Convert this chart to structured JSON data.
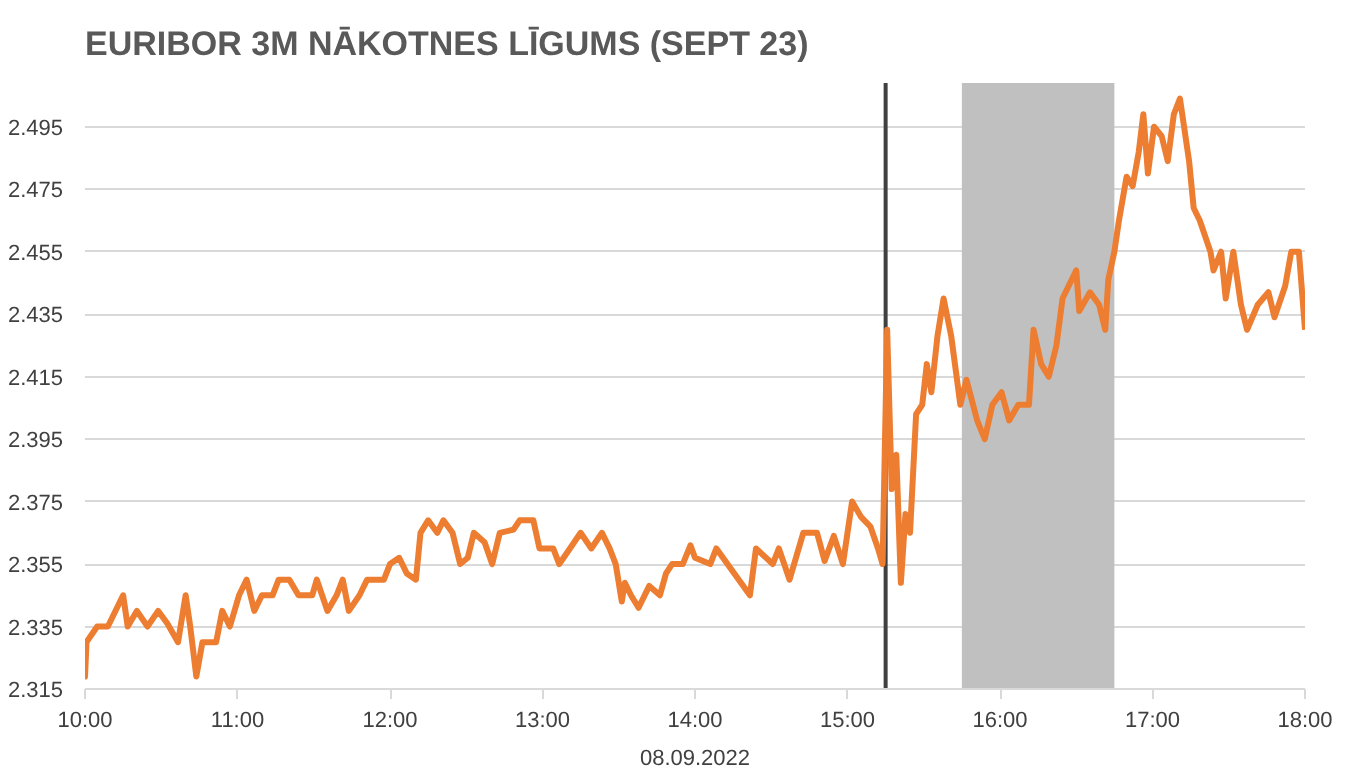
{
  "chart_data": {
    "type": "line",
    "title": "EURIBOR 3M NĀKOTNES LĪGUMS (SEPT 23)",
    "xlabel": "08.09.2022",
    "x": [
      10.0,
      10.0,
      10.01,
      10.08,
      10.15,
      10.21,
      10.25,
      10.28,
      10.34,
      10.41,
      10.48,
      10.54,
      10.61,
      10.66,
      10.69,
      10.73,
      10.77,
      10.86,
      10.9,
      10.95,
      11.01,
      11.06,
      11.11,
      11.16,
      11.23,
      11.27,
      11.34,
      11.4,
      11.49,
      11.52,
      11.59,
      11.65,
      11.69,
      11.73,
      11.8,
      11.85,
      11.96,
      12.0,
      12.06,
      12.11,
      12.17,
      12.2,
      12.25,
      12.31,
      12.35,
      12.41,
      12.46,
      12.51,
      12.55,
      12.62,
      12.67,
      12.72,
      12.81,
      12.85,
      12.94,
      12.98,
      13.07,
      13.11,
      13.18,
      13.25,
      13.32,
      13.39,
      13.44,
      13.48,
      13.52,
      13.54,
      13.58,
      13.63,
      13.7,
      13.77,
      13.81,
      13.85,
      13.92,
      13.97,
      14.0,
      14.1,
      14.14,
      14.36,
      14.4,
      14.51,
      14.55,
      14.62,
      14.71,
      14.8,
      14.85,
      14.91,
      14.97,
      15.03,
      15.09,
      15.15,
      15.2,
      15.23,
      15.26,
      15.29,
      15.32,
      15.35,
      15.38,
      15.41,
      15.45,
      15.49,
      15.52,
      15.55,
      15.59,
      15.63,
      15.68,
      15.74,
      15.78,
      15.85,
      15.9,
      15.95,
      16.01,
      16.06,
      16.12,
      16.19,
      16.22,
      16.27,
      16.32,
      16.37,
      16.41,
      16.5,
      16.52,
      16.59,
      16.65,
      16.69,
      16.71,
      16.75,
      16.78,
      16.83,
      16.87,
      16.91,
      16.94,
      16.97,
      17.01,
      17.06,
      17.1,
      17.14,
      17.18,
      17.24,
      17.27,
      17.31,
      17.38,
      17.4,
      17.45,
      17.48,
      17.53,
      17.58,
      17.62,
      17.69,
      17.76,
      17.8,
      17.87,
      17.91,
      17.96,
      18.0
    ],
    "series": [
      {
        "color": "#ed7d31",
        "values": [
          2.323,
          2.319,
          2.33,
          2.335,
          2.335,
          2.341,
          2.345,
          2.335,
          2.34,
          2.335,
          2.34,
          2.336,
          2.33,
          2.345,
          2.335,
          2.319,
          2.33,
          2.33,
          2.34,
          2.335,
          2.345,
          2.35,
          2.34,
          2.345,
          2.345,
          2.35,
          2.35,
          2.345,
          2.345,
          2.35,
          2.34,
          2.345,
          2.35,
          2.34,
          2.345,
          2.35,
          2.35,
          2.355,
          2.357,
          2.352,
          2.35,
          2.365,
          2.369,
          2.365,
          2.369,
          2.365,
          2.355,
          2.357,
          2.365,
          2.362,
          2.355,
          2.365,
          2.366,
          2.369,
          2.369,
          2.36,
          2.36,
          2.355,
          2.36,
          2.365,
          2.36,
          2.365,
          2.36,
          2.355,
          2.343,
          2.349,
          2.345,
          2.341,
          2.348,
          2.345,
          2.352,
          2.355,
          2.355,
          2.361,
          2.357,
          2.355,
          2.36,
          2.345,
          2.36,
          2.355,
          2.36,
          2.35,
          2.365,
          2.365,
          2.356,
          2.364,
          2.355,
          2.375,
          2.37,
          2.367,
          2.36,
          2.355,
          2.43,
          2.379,
          2.39,
          2.349,
          2.371,
          2.365,
          2.403,
          2.406,
          2.419,
          2.41,
          2.428,
          2.44,
          2.428,
          2.406,
          2.414,
          2.401,
          2.395,
          2.406,
          2.41,
          2.401,
          2.406,
          2.406,
          2.43,
          2.419,
          2.415,
          2.425,
          2.44,
          2.449,
          2.436,
          2.442,
          2.438,
          2.43,
          2.446,
          2.455,
          2.465,
          2.479,
          2.476,
          2.487,
          2.499,
          2.48,
          2.495,
          2.492,
          2.484,
          2.499,
          2.504,
          2.484,
          2.469,
          2.465,
          2.455,
          2.449,
          2.455,
          2.44,
          2.455,
          2.438,
          2.43,
          2.438,
          2.442,
          2.434,
          2.444,
          2.455,
          2.455,
          2.43
        ]
      }
    ],
    "xlim": [
      10,
      18
    ],
    "xticks": [
      {
        "value": 10,
        "label": "10:00"
      },
      {
        "value": 11,
        "label": "11:00"
      },
      {
        "value": 12,
        "label": "12:00"
      },
      {
        "value": 13,
        "label": "13:00"
      },
      {
        "value": 14,
        "label": "14:00"
      },
      {
        "value": 15,
        "label": "15:00"
      },
      {
        "value": 16,
        "label": "16:00"
      },
      {
        "value": 17,
        "label": "17:00"
      },
      {
        "value": 18,
        "label": "18:00"
      }
    ],
    "ylim": [
      2.315,
      2.509
    ],
    "yticks": [
      2.315,
      2.335,
      2.355,
      2.375,
      2.395,
      2.415,
      2.435,
      2.455,
      2.475,
      2.495
    ],
    "grid": "y",
    "marker": "none",
    "line_style": "solid",
    "ref_lines": [
      {
        "axis": "x",
        "value": 15.25,
        "color": "#404040",
        "line_style": "solid"
      }
    ],
    "bands": [
      {
        "axis": "x",
        "from": 15.75,
        "to": 16.75,
        "color": "#c0c0c0"
      }
    ]
  }
}
